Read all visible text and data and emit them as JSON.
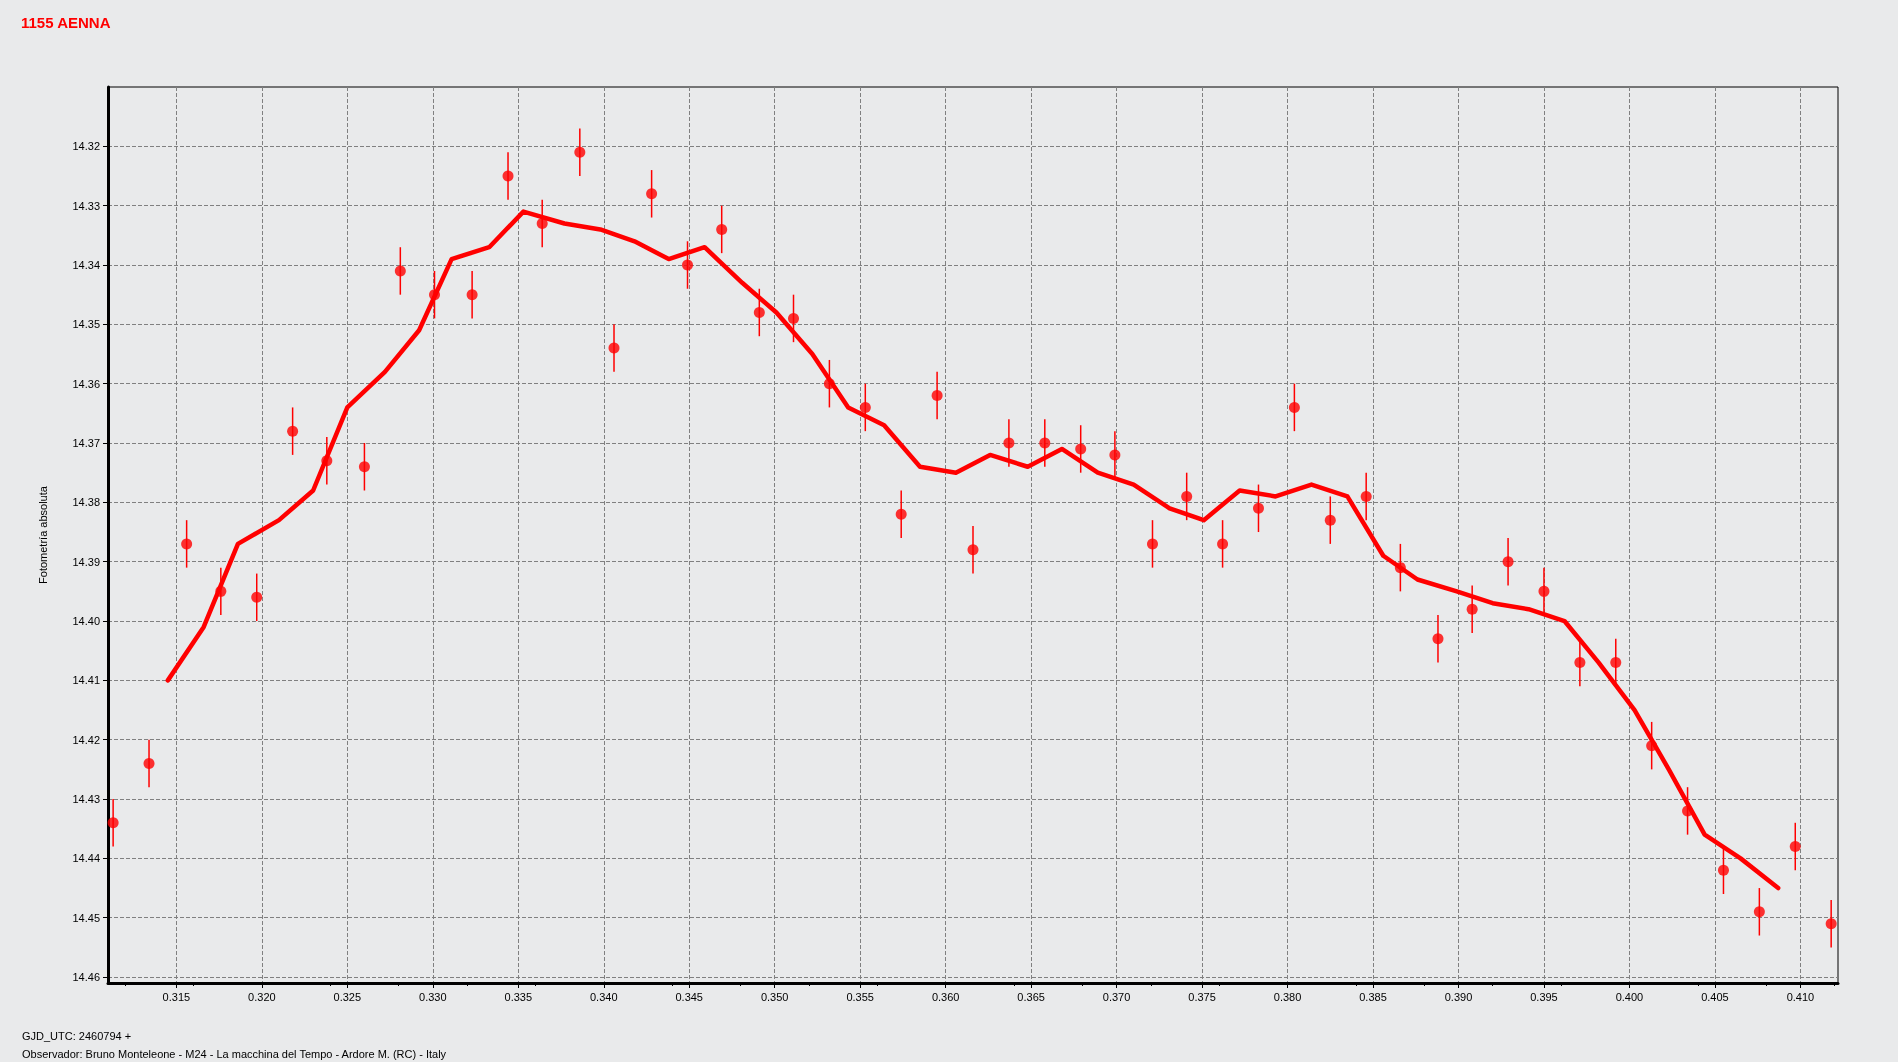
{
  "chart_data": {
    "type": "scatter",
    "title": "1155 AENNA",
    "ylabel": "Fotometría absoluta",
    "annotations": [
      "GJD_UTC: 2460794 +",
      "Observador: Bruno Monteleone - M24 - La macchina del Tempo - Ardore M. (RC) - Italy"
    ],
    "xlim": [
      0.311,
      0.4122
    ],
    "ylim": [
      14.461,
      14.31
    ],
    "xticks": [
      0.315,
      {
        "value": 0.32,
        "label": "0.320"
      },
      0.325,
      {
        "value": 0.33,
        "label": "0.330"
      },
      0.335,
      {
        "value": 0.34,
        "label": "0.340"
      },
      0.345,
      {
        "value": 0.35,
        "label": "0.350"
      },
      0.355,
      {
        "value": 0.36,
        "label": "0.360"
      },
      0.365,
      {
        "value": 0.37,
        "label": "0.370"
      },
      0.375,
      {
        "value": 0.38,
        "label": "0.380"
      },
      0.385,
      {
        "value": 0.39,
        "label": "0.390"
      },
      0.395,
      {
        "value": 0.4,
        "label": "0.400"
      },
      0.405,
      {
        "value": 0.41,
        "label": "0.410"
      }
    ],
    "yticks": [
      14.32,
      14.33,
      14.34,
      14.35,
      14.36,
      14.37,
      14.38,
      14.39,
      {
        "value": 14.4,
        "label": "14.40"
      },
      14.41,
      14.42,
      14.43,
      14.44,
      14.45,
      14.46
    ],
    "grid": true,
    "marker": "circle",
    "series": [
      {
        "type": "scatter",
        "color": "#ff0000",
        "x": [
          0.3113,
          0.3134,
          0.3156,
          0.3176,
          0.3197,
          0.3218,
          0.3238,
          0.326,
          0.3281,
          0.3301,
          0.3323,
          0.3344,
          0.3364,
          0.3386,
          0.3406,
          0.3428,
          0.3449,
          0.3469,
          0.3491,
          0.3511,
          0.3532,
          0.3553,
          0.3574,
          0.3595,
          0.3616,
          0.3637,
          0.3658,
          0.3679,
          0.3699,
          0.3721,
          0.3741,
          0.3762,
          0.3783,
          0.3804,
          0.3825,
          0.3846,
          0.3866,
          0.3888,
          0.3908,
          0.3929,
          0.395,
          0.3971,
          0.3992,
          0.4013,
          0.4034,
          0.4055,
          0.4076,
          0.4097,
          0.4118
        ],
        "values": [
          14.434,
          14.424,
          14.387,
          14.395,
          14.396,
          14.368,
          14.373,
          14.374,
          14.341,
          14.345,
          14.345,
          14.325,
          14.333,
          14.321,
          14.354,
          14.328,
          14.34,
          14.334,
          14.348,
          14.349,
          14.36,
          14.364,
          14.382,
          14.362,
          14.388,
          14.37,
          14.37,
          14.371,
          14.372,
          14.387,
          14.379,
          14.387,
          14.381,
          14.364,
          14.383,
          14.379,
          14.391,
          14.403,
          14.398,
          14.39,
          14.395,
          14.407,
          14.407,
          14.421,
          14.432,
          14.442,
          14.449,
          14.438,
          14.451
        ],
        "errors": [
          0.004,
          0.004,
          0.004,
          0.004,
          0.004,
          0.004,
          0.004,
          0.004,
          0.004,
          0.004,
          0.004,
          0.004,
          0.004,
          0.004,
          0.004,
          0.004,
          0.004,
          0.004,
          0.004,
          0.004,
          0.004,
          0.004,
          0.004,
          0.004,
          0.004,
          0.004,
          0.004,
          0.004,
          0.004,
          0.004,
          0.004,
          0.004,
          0.004,
          0.004,
          0.004,
          0.004,
          0.004,
          0.004,
          0.004,
          0.004,
          0.004,
          0.004,
          0.004,
          0.004,
          0.004,
          0.004,
          0.004,
          0.004,
          0.004
        ]
      },
      {
        "type": "line",
        "color": "#ff0000",
        "marker": "none",
        "line_style": "solid",
        "x": [
          0.3145,
          0.3166,
          0.3186,
          0.321,
          0.323,
          0.325,
          0.3272,
          0.3292,
          0.3311,
          0.3333,
          0.3353,
          0.3377,
          0.3398,
          0.3418,
          0.3438,
          0.3459,
          0.3481,
          0.3501,
          0.3522,
          0.3543,
          0.3564,
          0.3585,
          0.3606,
          0.3626,
          0.3648,
          0.3668,
          0.3689,
          0.371,
          0.3731,
          0.3751,
          0.3772,
          0.3793,
          0.3814,
          0.3835,
          0.3856,
          0.3876,
          0.3899,
          0.392,
          0.3941,
          0.3962,
          0.3982,
          0.4003,
          0.4023,
          0.4044,
          0.4065,
          0.4087
        ],
        "values": [
          14.41,
          14.401,
          14.387,
          14.383,
          14.378,
          14.364,
          14.358,
          14.351,
          14.339,
          14.337,
          14.331,
          14.333,
          14.334,
          14.336,
          14.339,
          14.337,
          14.343,
          14.348,
          14.355,
          14.364,
          14.367,
          14.374,
          14.375,
          14.372,
          14.374,
          14.371,
          14.375,
          14.377,
          14.381,
          14.383,
          14.378,
          14.379,
          14.377,
          14.379,
          14.389,
          14.393,
          14.395,
          14.397,
          14.398,
          14.4,
          14.407,
          14.415,
          14.425,
          14.436,
          14.44,
          14.445
        ]
      }
    ]
  }
}
